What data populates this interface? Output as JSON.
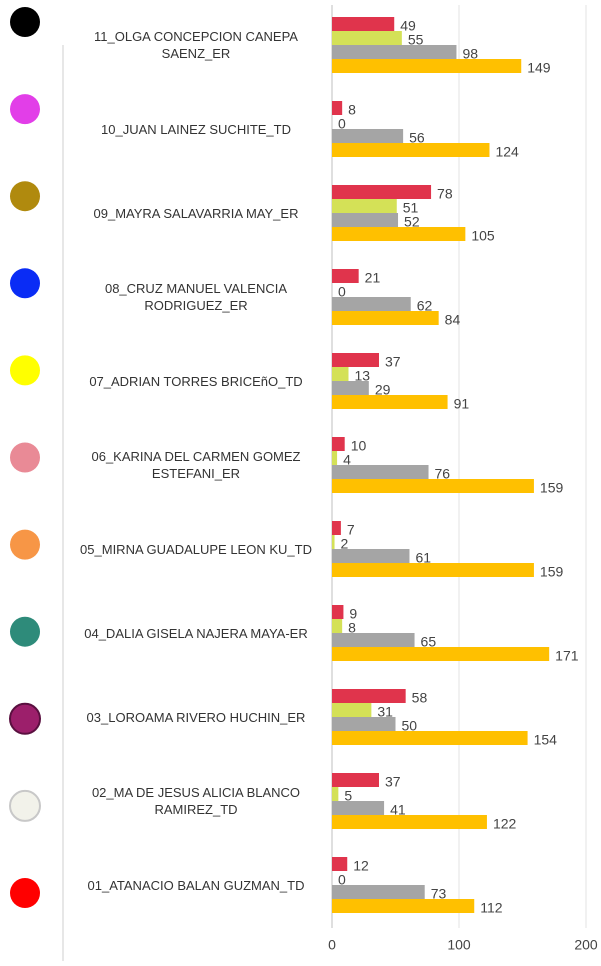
{
  "chart_data": {
    "type": "bar",
    "orientation": "horizontal",
    "categories": [
      "11_OLGA CONCEPCION CANEPA SAENZ_ER",
      "10_JUAN LAINEZ SUCHITE_TD",
      "09_MAYRA SALAVARRIA MAY_ER",
      "08_CRUZ MANUEL VALENCIA RODRIGUEZ_ER",
      "07_ADRIAN TORRES BRICEñO_TD",
      "06_KARINA DEL CARMEN GOMEZ ESTEFANI_ER",
      "05_MIRNA GUADALUPE LEON KU_TD",
      "04_DALIA GISELA NAJERA MAYA-ER",
      "03_LOROAMA RIVERO HUCHIN_ER",
      "02_MA DE JESUS ALICIA BLANCO RAMIREZ_TD",
      "01_ATANACIO BALAN GUZMAN_TD"
    ],
    "dot_colors": [
      "#000000",
      "#e23ee8",
      "#b08a0e",
      "#0a2cf5",
      "#ffff00",
      "#e98a96",
      "#f79646",
      "#2e8b7a",
      "#9c1f6b",
      "#f2f2ea",
      "#ff0000"
    ],
    "series": [
      {
        "color": "#e0344c",
        "values": [
          49,
          8,
          78,
          21,
          37,
          10,
          7,
          9,
          58,
          37,
          12
        ]
      },
      {
        "color": "#d4e157",
        "values": [
          55,
          0,
          51,
          0,
          13,
          4,
          2,
          8,
          31,
          5,
          0
        ]
      },
      {
        "color": "#a5a5a5",
        "values": [
          98,
          56,
          52,
          62,
          29,
          76,
          61,
          65,
          50,
          41,
          73
        ]
      },
      {
        "color": "#ffc000",
        "values": [
          149,
          124,
          105,
          84,
          91,
          159,
          159,
          171,
          154,
          122,
          112
        ]
      }
    ],
    "xlim": [
      0,
      200
    ],
    "xticks": [
      0,
      100,
      200
    ],
    "grid": true
  }
}
